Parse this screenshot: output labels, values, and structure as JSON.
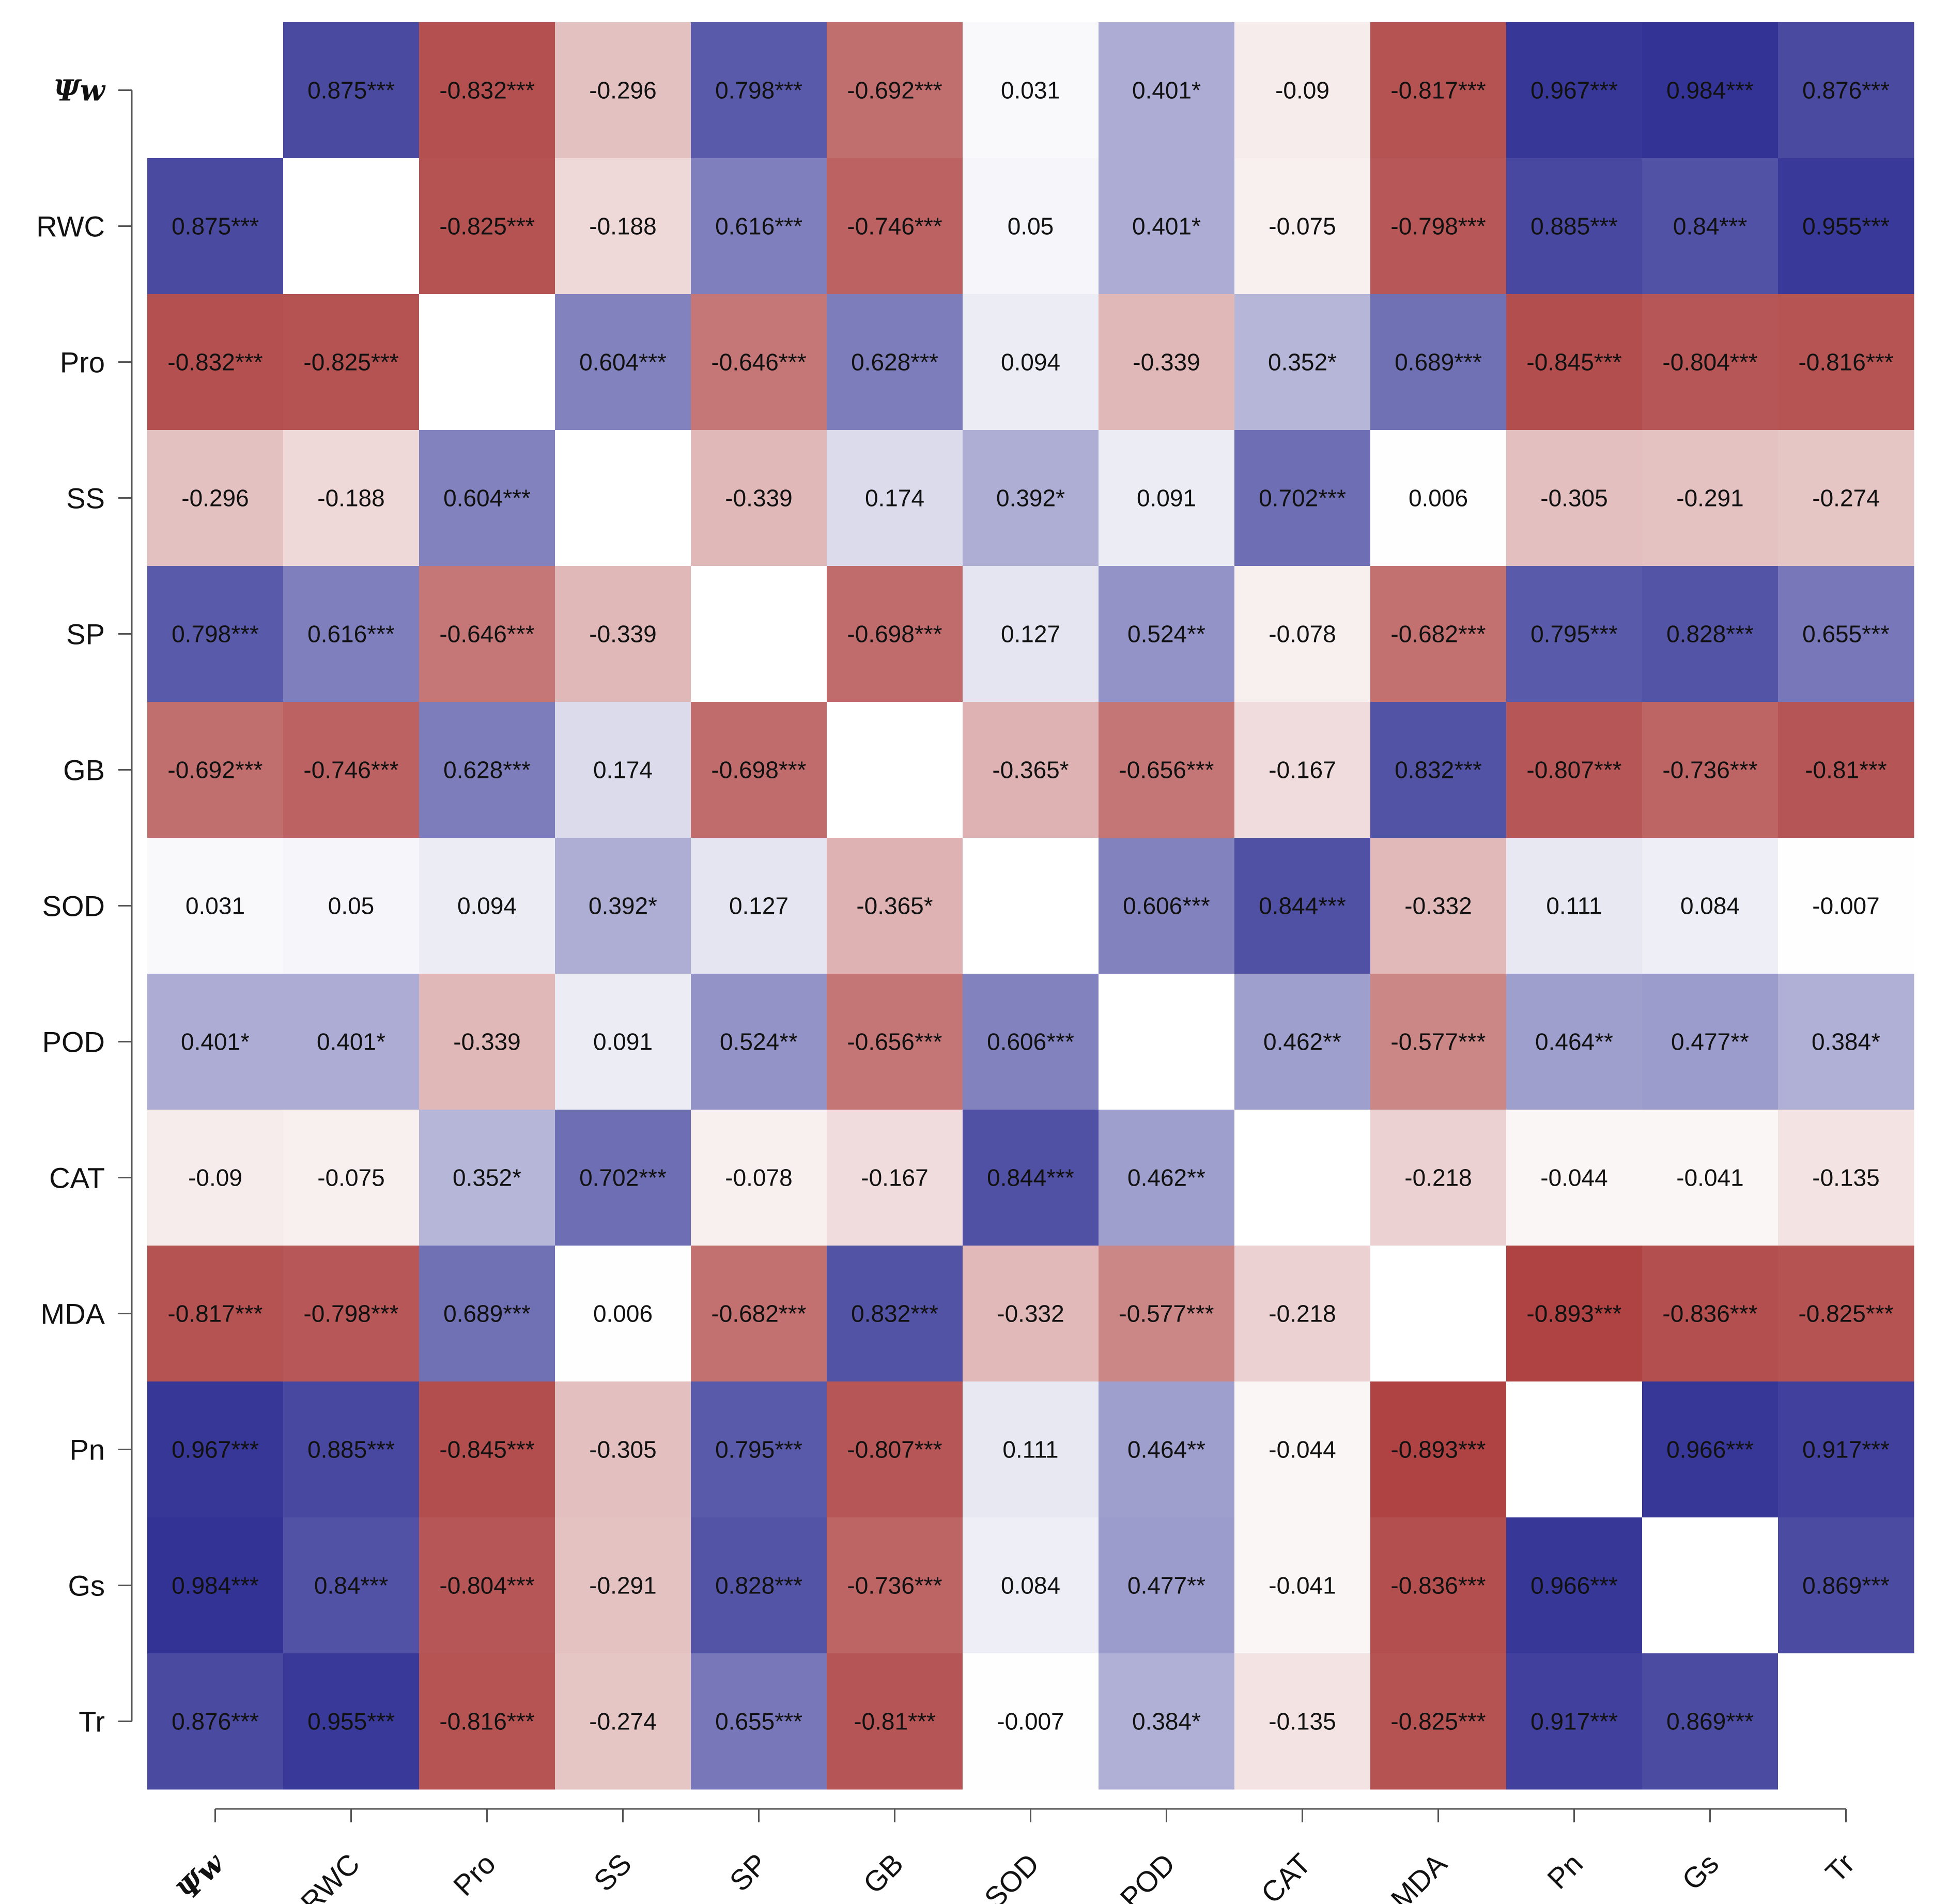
{
  "chart_data": {
    "type": "heatmap",
    "title": "",
    "xlabel": "",
    "ylabel": "",
    "variables": [
      "Ψw",
      "RWC",
      "Pro",
      "SS",
      "SP",
      "GB",
      "SOD",
      "POD",
      "CAT",
      "MDA",
      "Pn",
      "Gs",
      "Tr"
    ],
    "values": [
      [
        null,
        0.875,
        -0.832,
        -0.296,
        0.798,
        -0.692,
        0.031,
        0.401,
        -0.09,
        -0.817,
        0.967,
        0.984,
        0.876
      ],
      [
        0.875,
        null,
        -0.825,
        -0.188,
        0.616,
        -0.746,
        0.05,
        0.401,
        -0.075,
        -0.798,
        0.885,
        0.84,
        0.955
      ],
      [
        -0.832,
        -0.825,
        null,
        0.604,
        -0.646,
        0.628,
        0.094,
        -0.339,
        0.352,
        0.689,
        -0.845,
        -0.804,
        -0.816
      ],
      [
        -0.296,
        -0.188,
        0.604,
        null,
        -0.339,
        0.174,
        0.392,
        0.091,
        0.702,
        0.006,
        -0.305,
        -0.291,
        -0.274
      ],
      [
        0.798,
        0.616,
        -0.646,
        -0.339,
        null,
        -0.698,
        0.127,
        0.524,
        -0.078,
        -0.682,
        0.795,
        0.828,
        0.655
      ],
      [
        -0.692,
        -0.746,
        0.628,
        0.174,
        -0.698,
        null,
        -0.365,
        -0.656,
        -0.167,
        0.832,
        -0.807,
        -0.736,
        -0.81
      ],
      [
        0.031,
        0.05,
        0.094,
        0.392,
        0.127,
        -0.365,
        null,
        0.606,
        0.844,
        -0.332,
        0.111,
        0.084,
        -0.007
      ],
      [
        0.401,
        0.401,
        -0.339,
        0.091,
        0.524,
        -0.656,
        0.606,
        null,
        0.462,
        -0.577,
        0.464,
        0.477,
        0.384
      ],
      [
        -0.09,
        -0.075,
        0.352,
        0.702,
        -0.078,
        -0.167,
        0.844,
        0.462,
        null,
        -0.218,
        -0.044,
        -0.041,
        -0.135
      ],
      [
        -0.817,
        -0.798,
        0.689,
        0.006,
        -0.682,
        0.832,
        -0.332,
        -0.577,
        -0.218,
        null,
        -0.893,
        -0.836,
        -0.825
      ],
      [
        0.967,
        0.885,
        -0.845,
        -0.305,
        0.795,
        -0.807,
        0.111,
        0.464,
        -0.044,
        -0.893,
        null,
        0.966,
        0.917
      ],
      [
        0.984,
        0.84,
        -0.804,
        -0.291,
        0.828,
        -0.736,
        0.084,
        0.477,
        -0.041,
        -0.836,
        0.966,
        null,
        0.869
      ],
      [
        0.876,
        0.955,
        -0.816,
        -0.274,
        0.655,
        -0.81,
        -0.007,
        0.384,
        -0.135,
        -0.825,
        0.917,
        0.869,
        null
      ]
    ],
    "labels": [
      [
        "",
        "0.875***",
        "-0.832***",
        "-0.296",
        "0.798***",
        "-0.692***",
        "0.031",
        "0.401*",
        "-0.09",
        "-0.817***",
        "0.967***",
        "0.984***",
        "0.876***"
      ],
      [
        "0.875***",
        "",
        "-0.825***",
        "-0.188",
        "0.616***",
        "-0.746***",
        "0.05",
        "0.401*",
        "-0.075",
        "-0.798***",
        "0.885***",
        "0.84***",
        "0.955***"
      ],
      [
        "-0.832***",
        "-0.825***",
        "",
        "0.604***",
        "-0.646***",
        "0.628***",
        "0.094",
        "-0.339",
        "0.352*",
        "0.689***",
        "-0.845***",
        "-0.804***",
        "-0.816***"
      ],
      [
        "-0.296",
        "-0.188",
        "0.604***",
        "",
        "-0.339",
        "0.174",
        "0.392*",
        "0.091",
        "0.702***",
        "0.006",
        "-0.305",
        "-0.291",
        "-0.274"
      ],
      [
        "0.798***",
        "0.616***",
        "-0.646***",
        "-0.339",
        "",
        "-0.698***",
        "0.127",
        "0.524**",
        "-0.078",
        "-0.682***",
        "0.795***",
        "0.828***",
        "0.655***"
      ],
      [
        "-0.692***",
        "-0.746***",
        "0.628***",
        "0.174",
        "-0.698***",
        "",
        "-0.365*",
        "-0.656***",
        "-0.167",
        "0.832***",
        "-0.807***",
        "-0.736***",
        "-0.81***"
      ],
      [
        "0.031",
        "0.05",
        "0.094",
        "0.392*",
        "0.127",
        "-0.365*",
        "",
        "0.606***",
        "0.844***",
        "-0.332",
        "0.111",
        "0.084",
        "-0.007"
      ],
      [
        "0.401*",
        "0.401*",
        "-0.339",
        "0.091",
        "0.524**",
        "-0.656***",
        "0.606***",
        "",
        "0.462**",
        "-0.577***",
        "0.464**",
        "0.477**",
        "0.384*"
      ],
      [
        "-0.09",
        "-0.075",
        "0.352*",
        "0.702***",
        "-0.078",
        "-0.167",
        "0.844***",
        "0.462**",
        "",
        "-0.218",
        "-0.044",
        "-0.041",
        "-0.135"
      ],
      [
        "-0.817***",
        "-0.798***",
        "0.689***",
        "0.006",
        "-0.682***",
        "0.832***",
        "-0.332",
        "-0.577***",
        "-0.218",
        "",
        "-0.893***",
        "-0.836***",
        "-0.825***"
      ],
      [
        "0.967***",
        "0.885***",
        "-0.845***",
        "-0.305",
        "0.795***",
        "-0.807***",
        "0.111",
        "0.464**",
        "-0.044",
        "-0.893***",
        "",
        "0.966***",
        "0.917***"
      ],
      [
        "0.984***",
        "0.84***",
        "-0.804***",
        "-0.291",
        "0.828***",
        "-0.736***",
        "0.084",
        "0.477**",
        "-0.041",
        "-0.836***",
        "0.966***",
        "",
        "0.869***"
      ],
      [
        "0.876***",
        "0.955***",
        "-0.816***",
        "-0.274",
        "0.655***",
        "-0.81***",
        "-0.007",
        "0.384*",
        "-0.135",
        "-0.825***",
        "0.917***",
        "0.869***",
        ""
      ]
    ],
    "value_range": [
      -1,
      1
    ],
    "colors": {
      "negative": "#a52d2d",
      "zero": "#ffffff",
      "positive": "#303094",
      "diagonal": "#ffffff"
    },
    "grid": false,
    "legend": "none"
  }
}
